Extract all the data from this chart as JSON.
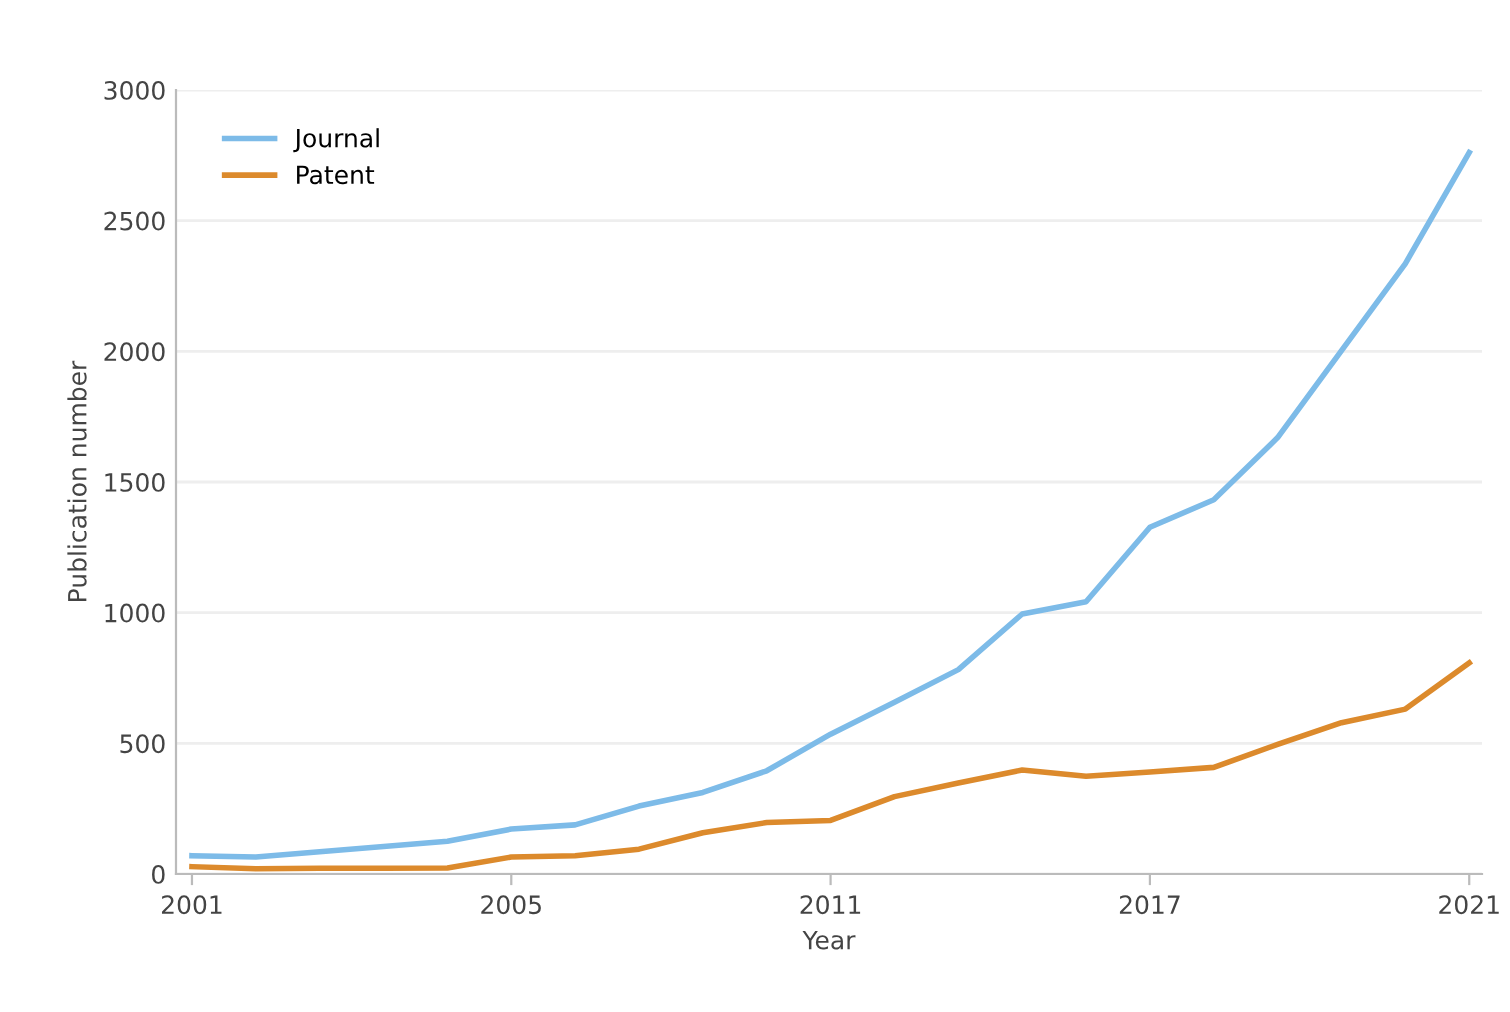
{
  "chart_data": {
    "type": "line",
    "xlabel": "Year",
    "ylabel": "Publication number",
    "categories": [
      "2001",
      null,
      null,
      null,
      null,
      "2005",
      null,
      null,
      null,
      null,
      "2011",
      null,
      null,
      null,
      null,
      "2017",
      null,
      null,
      null,
      null,
      "2021"
    ],
    "series": [
      {
        "name": "Journal",
        "color": "#7dbbe8",
        "values": [
          70,
          65,
          85,
          105,
          125,
          172,
          188,
          260,
          312,
          395,
          535,
          657,
          782,
          995,
          1042,
          1327,
          1432,
          1670,
          2003,
          2336,
          2761
        ]
      },
      {
        "name": "Patent",
        "color": "#dc8a2c",
        "values": [
          28,
          20,
          22,
          22,
          23,
          65,
          70,
          95,
          158,
          197,
          205,
          296,
          348,
          398,
          374,
          390,
          408,
          496,
          579,
          631,
          808
        ]
      }
    ],
    "ylim": [
      0,
      3000
    ],
    "yticks": [
      0,
      500,
      1000,
      1500,
      2000,
      2500,
      3000
    ],
    "grid": "y",
    "legend": "top left",
    "marker": "none",
    "line_style": "solid"
  }
}
